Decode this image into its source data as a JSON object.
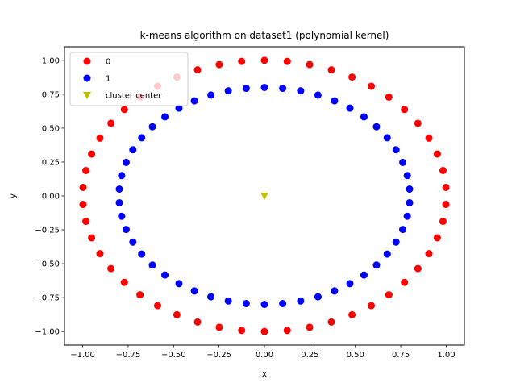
{
  "chart_data": {
    "type": "scatter",
    "title": "k-means algorithm on dataset1 (polynomial kernel)",
    "xlabel": "x",
    "ylabel": "y",
    "xlim": [
      -1.1,
      1.1
    ],
    "ylim": [
      -1.1,
      1.1
    ],
    "xticks": [
      "−1.00",
      "−0.75",
      "−0.50",
      "−0.25",
      "0.00",
      "0.25",
      "0.50",
      "0.75",
      "1.00"
    ],
    "xtick_values": [
      -1.0,
      -0.75,
      -0.5,
      -0.25,
      0.0,
      0.25,
      0.5,
      0.75,
      1.0
    ],
    "yticks": [
      "−1.00",
      "−0.75",
      "−0.50",
      "−0.25",
      "0.00",
      "0.25",
      "0.50",
      "0.75",
      "1.00"
    ],
    "ytick_values": [
      -1.0,
      -0.75,
      -0.5,
      -0.25,
      0.0,
      0.25,
      0.5,
      0.75,
      1.0
    ],
    "grid": false,
    "legend_position": "upper-left",
    "series": [
      {
        "name": "0",
        "color": "#ff0000",
        "marker": "circle",
        "ring_radius": 1.0,
        "ring_points": 50
      },
      {
        "name": "1",
        "color": "#0000ff",
        "marker": "circle",
        "ring_radius": 0.8,
        "ring_points": 50
      },
      {
        "name": "cluster center",
        "color": "#bfbf00",
        "marker": "triangle-down",
        "points": [
          {
            "x": 0.0,
            "y": 0.0
          }
        ]
      }
    ]
  }
}
